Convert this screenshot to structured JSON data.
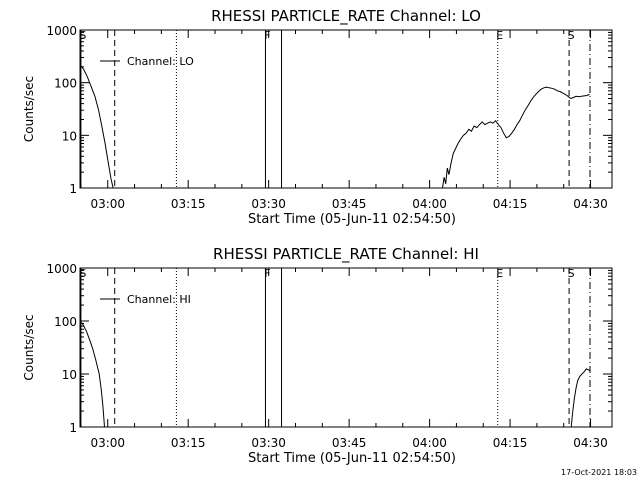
{
  "chart_data": [
    {
      "type": "line",
      "title": "RHESSI PARTICLE_RATE Channel: LO",
      "xlabel": "Start Time (05-Jun-11 02:54:50)",
      "ylabel": "Counts/sec",
      "yscale": "log",
      "ylim": [
        1,
        1000
      ],
      "xlim_minutes": [
        174.83,
        274.0
      ],
      "x_ticks": [
        {
          "min": 180,
          "label": "03:00"
        },
        {
          "min": 195,
          "label": "03:15"
        },
        {
          "min": 210,
          "label": "03:30"
        },
        {
          "min": 225,
          "label": "03:45"
        },
        {
          "min": 240,
          "label": "04:00"
        },
        {
          "min": 255,
          "label": "04:15"
        },
        {
          "min": 270,
          "label": "04:30"
        }
      ],
      "y_ticks": [
        {
          "v": 1,
          "label": "1"
        },
        {
          "v": 10,
          "label": "10"
        },
        {
          "v": 100,
          "label": "100"
        },
        {
          "v": 1000,
          "label": "1000"
        }
      ],
      "legend": {
        "label": "Channel: LO",
        "placement": "top-left"
      },
      "markers": [
        {
          "min": 175.0,
          "style": "solid",
          "label": "S"
        },
        {
          "min": 181.3,
          "style": "dashed",
          "label": ""
        },
        {
          "min": 192.8,
          "style": "dotted",
          "label": ""
        },
        {
          "min": 209.4,
          "style": "solid",
          "label": "F"
        },
        {
          "min": 212.4,
          "style": "solid",
          "label": ""
        },
        {
          "min": 252.7,
          "style": "dotted",
          "label": "E"
        },
        {
          "min": 266.0,
          "style": "dashed",
          "label": "S"
        },
        {
          "min": 269.9,
          "style": "dashdot",
          "label": ""
        }
      ],
      "series": [
        {
          "name": "Channel: LO",
          "segments": [
            [
              [
                174.8,
                220
              ],
              [
                175.5,
                180
              ],
              [
                176.2,
                130
              ],
              [
                176.9,
                85
              ],
              [
                177.6,
                55
              ],
              [
                178.3,
                30
              ],
              [
                178.9,
                15
              ],
              [
                179.5,
                7
              ],
              [
                180.1,
                3
              ],
              [
                180.6,
                1.5
              ],
              [
                181.0,
                1
              ]
            ],
            [
              [
                242.4,
                1
              ],
              [
                242.7,
                1.6
              ],
              [
                243.0,
                1.2
              ],
              [
                243.3,
                2.4
              ],
              [
                243.6,
                1.8
              ],
              [
                244.0,
                3.0
              ],
              [
                244.4,
                4.5
              ],
              [
                244.8,
                5.5
              ],
              [
                245.3,
                7
              ],
              [
                245.8,
                8.5
              ],
              [
                246.3,
                10
              ],
              [
                246.8,
                11
              ],
              [
                247.3,
                13
              ],
              [
                247.8,
                12
              ],
              [
                248.3,
                15
              ],
              [
                248.8,
                14
              ],
              [
                249.3,
                16
              ],
              [
                249.8,
                18
              ],
              [
                250.3,
                16
              ],
              [
                250.8,
                17
              ],
              [
                251.3,
                18
              ],
              [
                251.8,
                17
              ],
              [
                252.3,
                19
              ],
              [
                252.8,
                16
              ],
              [
                253.3,
                14
              ],
              [
                253.8,
                11
              ],
              [
                254.3,
                9
              ],
              [
                254.8,
                9.5
              ],
              [
                255.3,
                11
              ],
              [
                255.8,
                13
              ],
              [
                256.3,
                16
              ],
              [
                256.8,
                19
              ],
              [
                257.3,
                24
              ],
              [
                257.8,
                30
              ],
              [
                258.3,
                36
              ],
              [
                258.8,
                44
              ],
              [
                259.3,
                52
              ],
              [
                259.8,
                60
              ],
              [
                260.3,
                68
              ],
              [
                260.8,
                75
              ],
              [
                261.3,
                80
              ],
              [
                261.8,
                82
              ],
              [
                262.3,
                80
              ],
              [
                262.8,
                78
              ],
              [
                263.3,
                75
              ],
              [
                263.8,
                70
              ],
              [
                264.3,
                68
              ],
              [
                264.8,
                64
              ],
              [
                265.3,
                60
              ],
              [
                265.8,
                55
              ],
              [
                266.3,
                50
              ],
              [
                266.8,
                52
              ],
              [
                267.3,
                55
              ],
              [
                267.8,
                54
              ],
              [
                268.3,
                55
              ],
              [
                268.8,
                56
              ],
              [
                269.3,
                57
              ],
              [
                269.8,
                60
              ]
            ]
          ]
        }
      ]
    },
    {
      "type": "line",
      "title": "RHESSI PARTICLE_RATE Channel: HI",
      "xlabel": "Start Time (05-Jun-11 02:54:50)",
      "ylabel": "Counts/sec",
      "yscale": "log",
      "ylim": [
        1,
        1000
      ],
      "xlim_minutes": [
        174.83,
        274.0
      ],
      "x_ticks": [
        {
          "min": 180,
          "label": "03:00"
        },
        {
          "min": 195,
          "label": "03:15"
        },
        {
          "min": 210,
          "label": "03:30"
        },
        {
          "min": 225,
          "label": "03:45"
        },
        {
          "min": 240,
          "label": "04:00"
        },
        {
          "min": 255,
          "label": "04:15"
        },
        {
          "min": 270,
          "label": "04:30"
        }
      ],
      "y_ticks": [
        {
          "v": 1,
          "label": "1"
        },
        {
          "v": 10,
          "label": "10"
        },
        {
          "v": 100,
          "label": "100"
        },
        {
          "v": 1000,
          "label": "1000"
        }
      ],
      "legend": {
        "label": "Channel: HI",
        "placement": "top-left"
      },
      "markers": [
        {
          "min": 175.0,
          "style": "solid",
          "label": "S"
        },
        {
          "min": 181.3,
          "style": "dashed",
          "label": ""
        },
        {
          "min": 192.8,
          "style": "dotted",
          "label": ""
        },
        {
          "min": 209.4,
          "style": "solid",
          "label": "F"
        },
        {
          "min": 212.4,
          "style": "solid",
          "label": ""
        },
        {
          "min": 252.7,
          "style": "dotted",
          "label": "E"
        },
        {
          "min": 266.0,
          "style": "dashed",
          "label": "S"
        },
        {
          "min": 269.9,
          "style": "dashdot",
          "label": ""
        }
      ],
      "series": [
        {
          "name": "Channel: HI",
          "segments": [
            [
              [
                174.8,
                100
              ],
              [
                175.4,
                85
              ],
              [
                176.0,
                65
              ],
              [
                176.6,
                45
              ],
              [
                177.2,
                30
              ],
              [
                177.8,
                18
              ],
              [
                178.4,
                10
              ],
              [
                178.8,
                5
              ],
              [
                179.1,
                2.5
              ],
              [
                179.4,
                1
              ]
            ],
            [
              [
                266.4,
                1
              ],
              [
                266.7,
                2
              ],
              [
                267.0,
                3.5
              ],
              [
                267.3,
                5.5
              ],
              [
                267.6,
                7.5
              ],
              [
                268.0,
                9
              ],
              [
                268.4,
                10
              ],
              [
                268.8,
                11
              ],
              [
                269.2,
                12.5
              ],
              [
                269.6,
                12
              ],
              [
                269.9,
                11.5
              ]
            ]
          ]
        }
      ]
    }
  ],
  "footer": {
    "timestamp": "17-Oct-2021 18:03"
  }
}
